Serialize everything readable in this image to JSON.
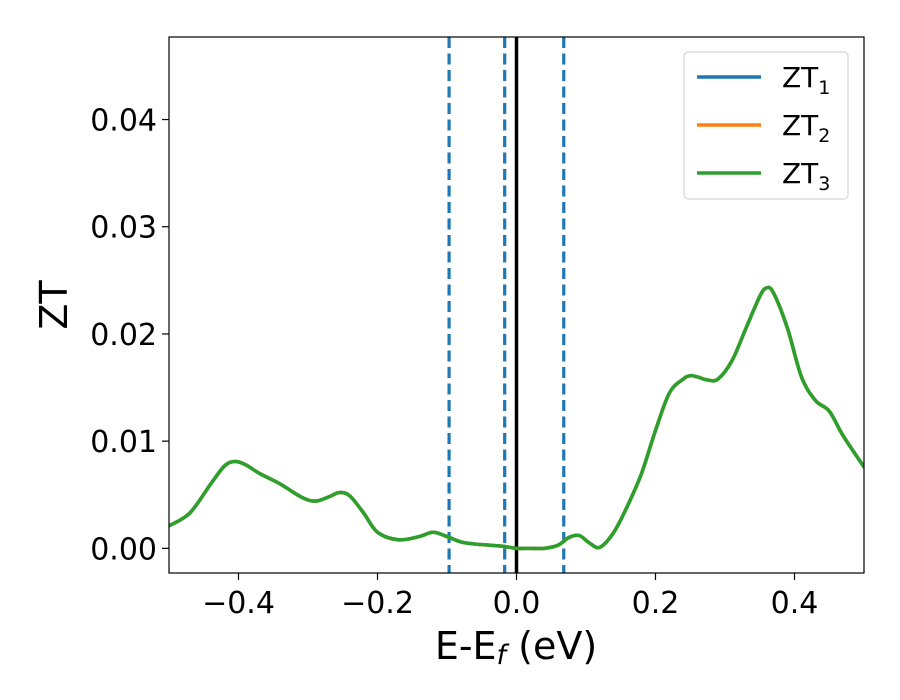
{
  "chart_data": {
    "type": "line",
    "xlabel": "E-E",
    "xlabel_sub": "f",
    "xlabel_unit": " (eV)",
    "ylabel": "ZT",
    "xlim": [
      -0.5,
      0.5
    ],
    "ylim": [
      -0.0023,
      0.0477
    ],
    "xticks": [
      -0.4,
      -0.2,
      0.0,
      0.2,
      0.4
    ],
    "xtick_labels": [
      "−0.4",
      "−0.2",
      "0.0",
      "0.2",
      "0.4"
    ],
    "yticks": [
      0.0,
      0.01,
      0.02,
      0.03,
      0.04
    ],
    "ytick_labels": [
      "0.00",
      "0.01",
      "0.02",
      "0.03",
      "0.04"
    ],
    "grid": false,
    "legend_position": "top-right",
    "series": [
      {
        "name": "ZT",
        "sub": "1",
        "color": "#1f77b4",
        "x": [
          -0.5,
          -0.47,
          -0.44,
          -0.42,
          -0.405,
          -0.39,
          -0.37,
          -0.34,
          -0.31,
          -0.29,
          -0.27,
          -0.255,
          -0.24,
          -0.22,
          -0.2,
          -0.17,
          -0.14,
          -0.12,
          -0.1,
          -0.08,
          -0.06,
          -0.04,
          -0.02,
          0.0,
          0.02,
          0.04,
          0.06,
          0.075,
          0.09,
          0.105,
          0.12,
          0.14,
          0.16,
          0.18,
          0.2,
          0.22,
          0.24,
          0.25,
          0.26,
          0.275,
          0.29,
          0.31,
          0.33,
          0.35,
          0.36,
          0.37,
          0.39,
          0.41,
          0.43,
          0.45,
          0.47,
          0.5
        ],
        "y": [
          0.0021,
          0.0033,
          0.006,
          0.0077,
          0.0081,
          0.0078,
          0.007,
          0.006,
          0.0048,
          0.0044,
          0.0048,
          0.0052,
          0.0049,
          0.0033,
          0.0015,
          0.0008,
          0.0011,
          0.0015,
          0.0011,
          0.0006,
          0.0004,
          0.0003,
          0.0002,
          0.0,
          0.0,
          0.0,
          0.0003,
          0.001,
          0.0012,
          0.0005,
          0.0001,
          0.0015,
          0.004,
          0.007,
          0.011,
          0.0145,
          0.0158,
          0.0161,
          0.016,
          0.0157,
          0.0158,
          0.0175,
          0.0205,
          0.0235,
          0.0243,
          0.0238,
          0.0205,
          0.016,
          0.0138,
          0.0128,
          0.0105,
          0.0076
        ]
      },
      {
        "name": "ZT",
        "sub": "2",
        "color": "#ff7f0e",
        "x": [
          -0.5,
          -0.47,
          -0.44,
          -0.42,
          -0.405,
          -0.39,
          -0.37,
          -0.34,
          -0.31,
          -0.29,
          -0.27,
          -0.255,
          -0.24,
          -0.22,
          -0.2,
          -0.17,
          -0.14,
          -0.12,
          -0.1,
          -0.08,
          -0.06,
          -0.04,
          -0.02,
          0.0,
          0.02,
          0.04,
          0.06,
          0.075,
          0.09,
          0.105,
          0.12,
          0.14,
          0.16,
          0.18,
          0.2,
          0.22,
          0.24,
          0.25,
          0.26,
          0.275,
          0.29,
          0.31,
          0.33,
          0.35,
          0.36,
          0.37,
          0.39,
          0.41,
          0.43,
          0.45,
          0.47,
          0.5
        ],
        "y": [
          0.0021,
          0.0033,
          0.006,
          0.0077,
          0.0081,
          0.0078,
          0.007,
          0.006,
          0.0048,
          0.0044,
          0.0048,
          0.0052,
          0.0049,
          0.0033,
          0.0015,
          0.0008,
          0.0011,
          0.0015,
          0.0011,
          0.0006,
          0.0004,
          0.0003,
          0.0002,
          0.0,
          0.0,
          0.0,
          0.0003,
          0.001,
          0.0012,
          0.0005,
          0.0001,
          0.0015,
          0.004,
          0.007,
          0.011,
          0.0145,
          0.0158,
          0.0161,
          0.016,
          0.0157,
          0.0158,
          0.0175,
          0.0205,
          0.0235,
          0.0243,
          0.0238,
          0.0205,
          0.016,
          0.0138,
          0.0128,
          0.0105,
          0.0076
        ]
      },
      {
        "name": "ZT",
        "sub": "3",
        "color": "#2ca02c",
        "x": [
          -0.5,
          -0.47,
          -0.44,
          -0.42,
          -0.405,
          -0.39,
          -0.37,
          -0.34,
          -0.31,
          -0.29,
          -0.27,
          -0.255,
          -0.24,
          -0.22,
          -0.2,
          -0.17,
          -0.14,
          -0.12,
          -0.1,
          -0.08,
          -0.06,
          -0.04,
          -0.02,
          0.0,
          0.02,
          0.04,
          0.06,
          0.075,
          0.09,
          0.105,
          0.12,
          0.14,
          0.16,
          0.18,
          0.2,
          0.22,
          0.24,
          0.25,
          0.26,
          0.275,
          0.29,
          0.31,
          0.33,
          0.35,
          0.36,
          0.37,
          0.39,
          0.41,
          0.43,
          0.45,
          0.47,
          0.5
        ],
        "y": [
          0.0021,
          0.0033,
          0.006,
          0.0077,
          0.0081,
          0.0078,
          0.007,
          0.006,
          0.0048,
          0.0044,
          0.0048,
          0.0052,
          0.0049,
          0.0033,
          0.0015,
          0.0008,
          0.0011,
          0.0015,
          0.0011,
          0.0006,
          0.0004,
          0.0003,
          0.0002,
          0.0,
          0.0,
          0.0,
          0.0003,
          0.001,
          0.0012,
          0.0005,
          0.0001,
          0.0015,
          0.004,
          0.007,
          0.011,
          0.0145,
          0.0158,
          0.0161,
          0.016,
          0.0157,
          0.0158,
          0.0175,
          0.0205,
          0.0235,
          0.0243,
          0.0238,
          0.0205,
          0.016,
          0.0138,
          0.0128,
          0.0105,
          0.0076
        ]
      }
    ],
    "vertical_lines": [
      {
        "x": -0.097,
        "style": "dashed",
        "color": "#1f77b4"
      },
      {
        "x": -0.017,
        "style": "dashed",
        "color": "#1f77b4"
      },
      {
        "x": 0.0,
        "style": "solid",
        "color": "#000000"
      },
      {
        "x": 0.068,
        "style": "dashed",
        "color": "#1f77b4"
      }
    ]
  }
}
